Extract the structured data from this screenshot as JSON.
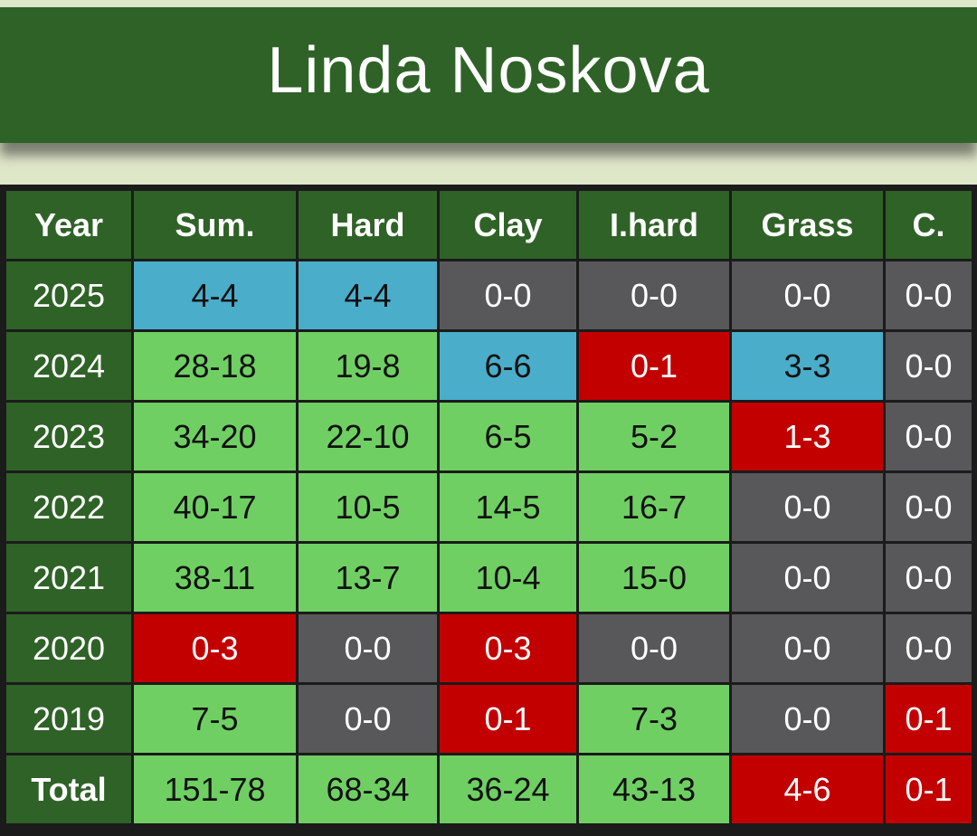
{
  "title": "Linda Noskova",
  "columns": [
    "Year",
    "Sum.",
    "Hard",
    "Clay",
    "I.hard",
    "Grass",
    "C."
  ],
  "colors": {
    "banner": "#2f6227",
    "green": "#6fcf63",
    "blue": "#4aadca",
    "red": "#c30000",
    "gray": "#58585a"
  },
  "rows": [
    {
      "year": "2025",
      "cells": [
        [
          "4-4",
          "blue"
        ],
        [
          "4-4",
          "blue"
        ],
        [
          "0-0",
          "gray"
        ],
        [
          "0-0",
          "gray"
        ],
        [
          "0-0",
          "gray"
        ],
        [
          "0-0",
          "gray"
        ]
      ]
    },
    {
      "year": "2024",
      "cells": [
        [
          "28-18",
          "green"
        ],
        [
          "19-8",
          "green"
        ],
        [
          "6-6",
          "blue"
        ],
        [
          "0-1",
          "red"
        ],
        [
          "3-3",
          "blue"
        ],
        [
          "0-0",
          "gray"
        ]
      ]
    },
    {
      "year": "2023",
      "cells": [
        [
          "34-20",
          "green"
        ],
        [
          "22-10",
          "green"
        ],
        [
          "6-5",
          "green"
        ],
        [
          "5-2",
          "green"
        ],
        [
          "1-3",
          "red"
        ],
        [
          "0-0",
          "gray"
        ]
      ]
    },
    {
      "year": "2022",
      "cells": [
        [
          "40-17",
          "green"
        ],
        [
          "10-5",
          "green"
        ],
        [
          "14-5",
          "green"
        ],
        [
          "16-7",
          "green"
        ],
        [
          "0-0",
          "gray"
        ],
        [
          "0-0",
          "gray"
        ]
      ]
    },
    {
      "year": "2021",
      "cells": [
        [
          "38-11",
          "green"
        ],
        [
          "13-7",
          "green"
        ],
        [
          "10-4",
          "green"
        ],
        [
          "15-0",
          "green"
        ],
        [
          "0-0",
          "gray"
        ],
        [
          "0-0",
          "gray"
        ]
      ]
    },
    {
      "year": "2020",
      "cells": [
        [
          "0-3",
          "red"
        ],
        [
          "0-0",
          "gray"
        ],
        [
          "0-3",
          "red"
        ],
        [
          "0-0",
          "gray"
        ],
        [
          "0-0",
          "gray"
        ],
        [
          "0-0",
          "gray"
        ]
      ]
    },
    {
      "year": "2019",
      "cells": [
        [
          "7-5",
          "green"
        ],
        [
          "0-0",
          "gray"
        ],
        [
          "0-1",
          "red"
        ],
        [
          "7-3",
          "green"
        ],
        [
          "0-0",
          "gray"
        ],
        [
          "0-1",
          "red"
        ]
      ]
    },
    {
      "year": "Total",
      "cells": [
        [
          "151-78",
          "green"
        ],
        [
          "68-34",
          "green"
        ],
        [
          "36-24",
          "green"
        ],
        [
          "43-13",
          "green"
        ],
        [
          "4-6",
          "red"
        ],
        [
          "0-1",
          "red"
        ]
      ]
    }
  ]
}
